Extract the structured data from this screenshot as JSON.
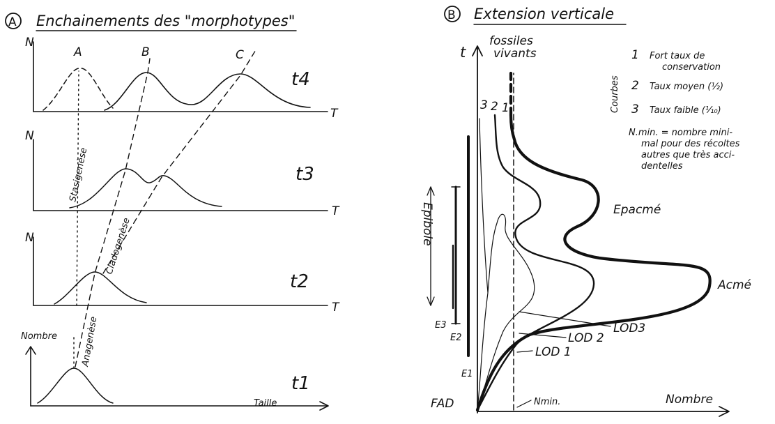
{
  "panel_a": {
    "letter": "A",
    "title": "Enchainements des \"morphotypes\"",
    "morphotypes": [
      "A",
      "B",
      "C"
    ],
    "processes": [
      "Stasigenèse",
      "Cladogenèse",
      "Anagenèse"
    ],
    "rows": [
      {
        "time": "t4",
        "y_label": "N",
        "x_label": "T"
      },
      {
        "time": "t3",
        "y_label": "N",
        "x_label": "T"
      },
      {
        "time": "t2",
        "y_label": "N",
        "x_label": "T"
      },
      {
        "time": "t1",
        "y_label": "Nombre",
        "x_label": "Taille"
      }
    ]
  },
  "panel_b": {
    "letter": "B",
    "title": "Extension verticale",
    "y_label": "t",
    "x_label": "Nombre",
    "fad": "FAD",
    "nmin": "Nmin.",
    "living_fossils": [
      "fossiles",
      "vivants"
    ],
    "curve_numbers": [
      "3",
      "2",
      "1"
    ],
    "peaks": [
      "Epacmé",
      "Acmé"
    ],
    "lods": [
      "LOD3",
      "LOD 2",
      "LOD 1"
    ],
    "epibole": "Epibole",
    "ranges": [
      "E1",
      "E2",
      "E3"
    ],
    "legend": {
      "title": "Courbes",
      "items": [
        {
          "num": "1",
          "line1": "Fort taux de",
          "line2": "conservation"
        },
        {
          "num": "2",
          "line1": "Taux moyen (½)"
        },
        {
          "num": "3",
          "line1": "Taux faible (⅒)"
        }
      ]
    },
    "nmin_definition": [
      "N.min. = nombre mini-",
      "mal pour des récoltes",
      "autres que très acci-",
      "dentelles"
    ]
  }
}
